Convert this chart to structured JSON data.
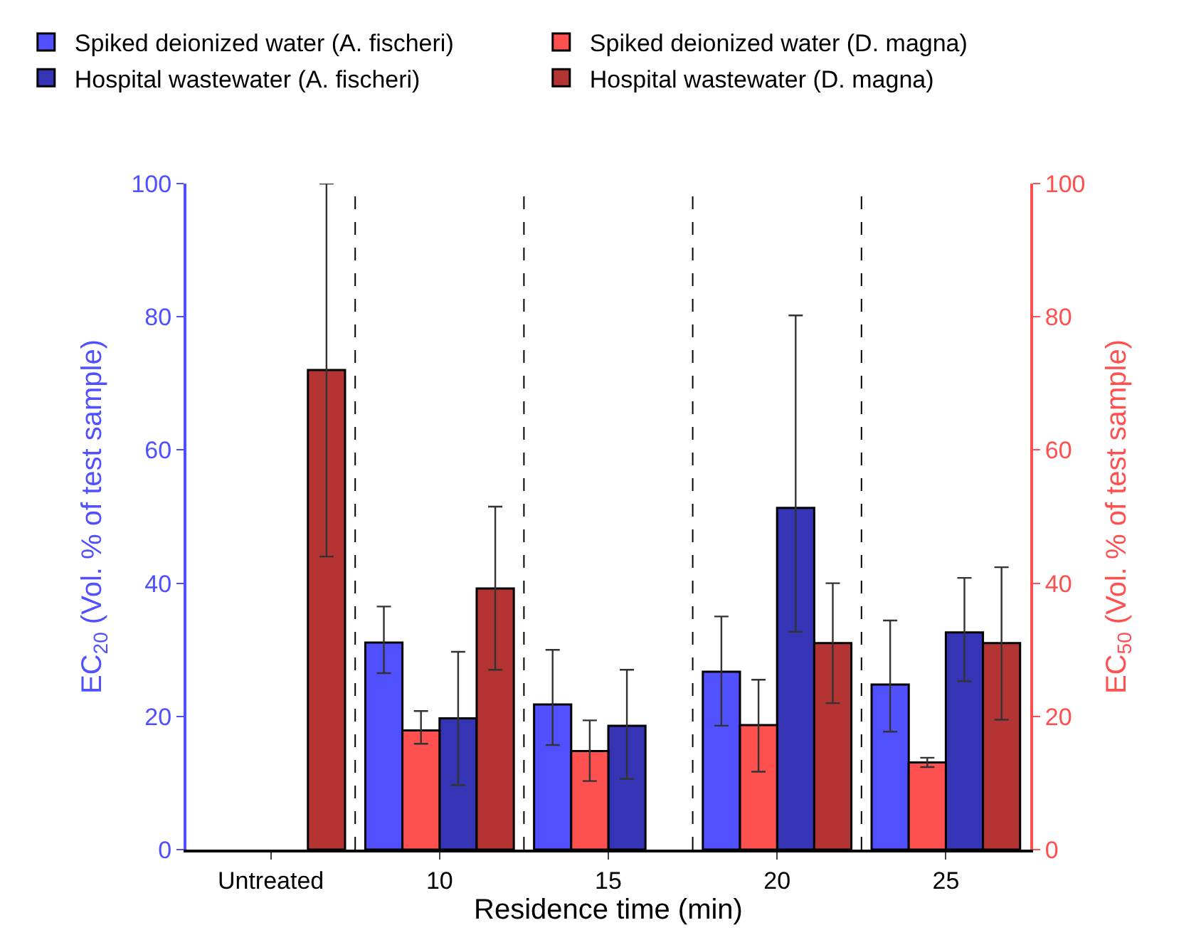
{
  "chart_data": {
    "type": "bar",
    "xlabel": "Residence time (min)",
    "ylabel": "EC$_{20}$ (Vol. % of test sample)",
    "y2label": "EC$_{50}$ (Vol. % of test sample)",
    "categories": [
      "Untreated",
      "10",
      "15",
      "20",
      "25"
    ],
    "series": [
      {
        "name": "Spiked deionized water (A. fischeri)",
        "color": "#5050ff",
        "values": [
          null,
          31.1,
          21.8,
          26.7,
          24.8
        ],
        "errors": [
          null,
          [
            26.5,
            36.5
          ],
          [
            15.7,
            30
          ],
          [
            18.6,
            35
          ],
          [
            17.7,
            34.4
          ]
        ]
      },
      {
        "name": "Spiked deionized water (D. magna)",
        "color": "#ff5050",
        "axis": "y2",
        "values": [
          null,
          17.9,
          14.8,
          18.7,
          13.1
        ],
        "errors": [
          null,
          [
            15.9,
            20.8
          ],
          [
            10.3,
            19.4
          ],
          [
            11.7,
            25.5
          ],
          [
            12.4,
            13.8
          ]
        ]
      },
      {
        "name": "Hospital wastewater (A. fischeri)",
        "color": "#3434b4",
        "values": [
          null,
          19.7,
          18.6,
          51.3,
          32.6
        ],
        "errors": [
          null,
          [
            9.7,
            29.7
          ],
          [
            10.6,
            27
          ],
          [
            32.7,
            80.2
          ],
          [
            25.3,
            40.8
          ]
        ]
      },
      {
        "name": "Hospital wastewater (D. magna)",
        "color": "#b43434",
        "axis": "y2",
        "values": [
          72,
          39.2,
          null,
          31,
          31
        ],
        "errors": [
          [
            44,
            100
          ],
          [
            27,
            51.5
          ],
          null,
          [
            22,
            40
          ],
          [
            19.5,
            42.4
          ]
        ]
      }
    ],
    "ylim": [
      0,
      100
    ],
    "yticks": [
      0,
      20,
      40,
      60,
      80,
      100
    ],
    "y2lim": [
      0,
      100
    ],
    "y2ticks": [
      0,
      20,
      40,
      60,
      80,
      100
    ],
    "legend": "top"
  }
}
